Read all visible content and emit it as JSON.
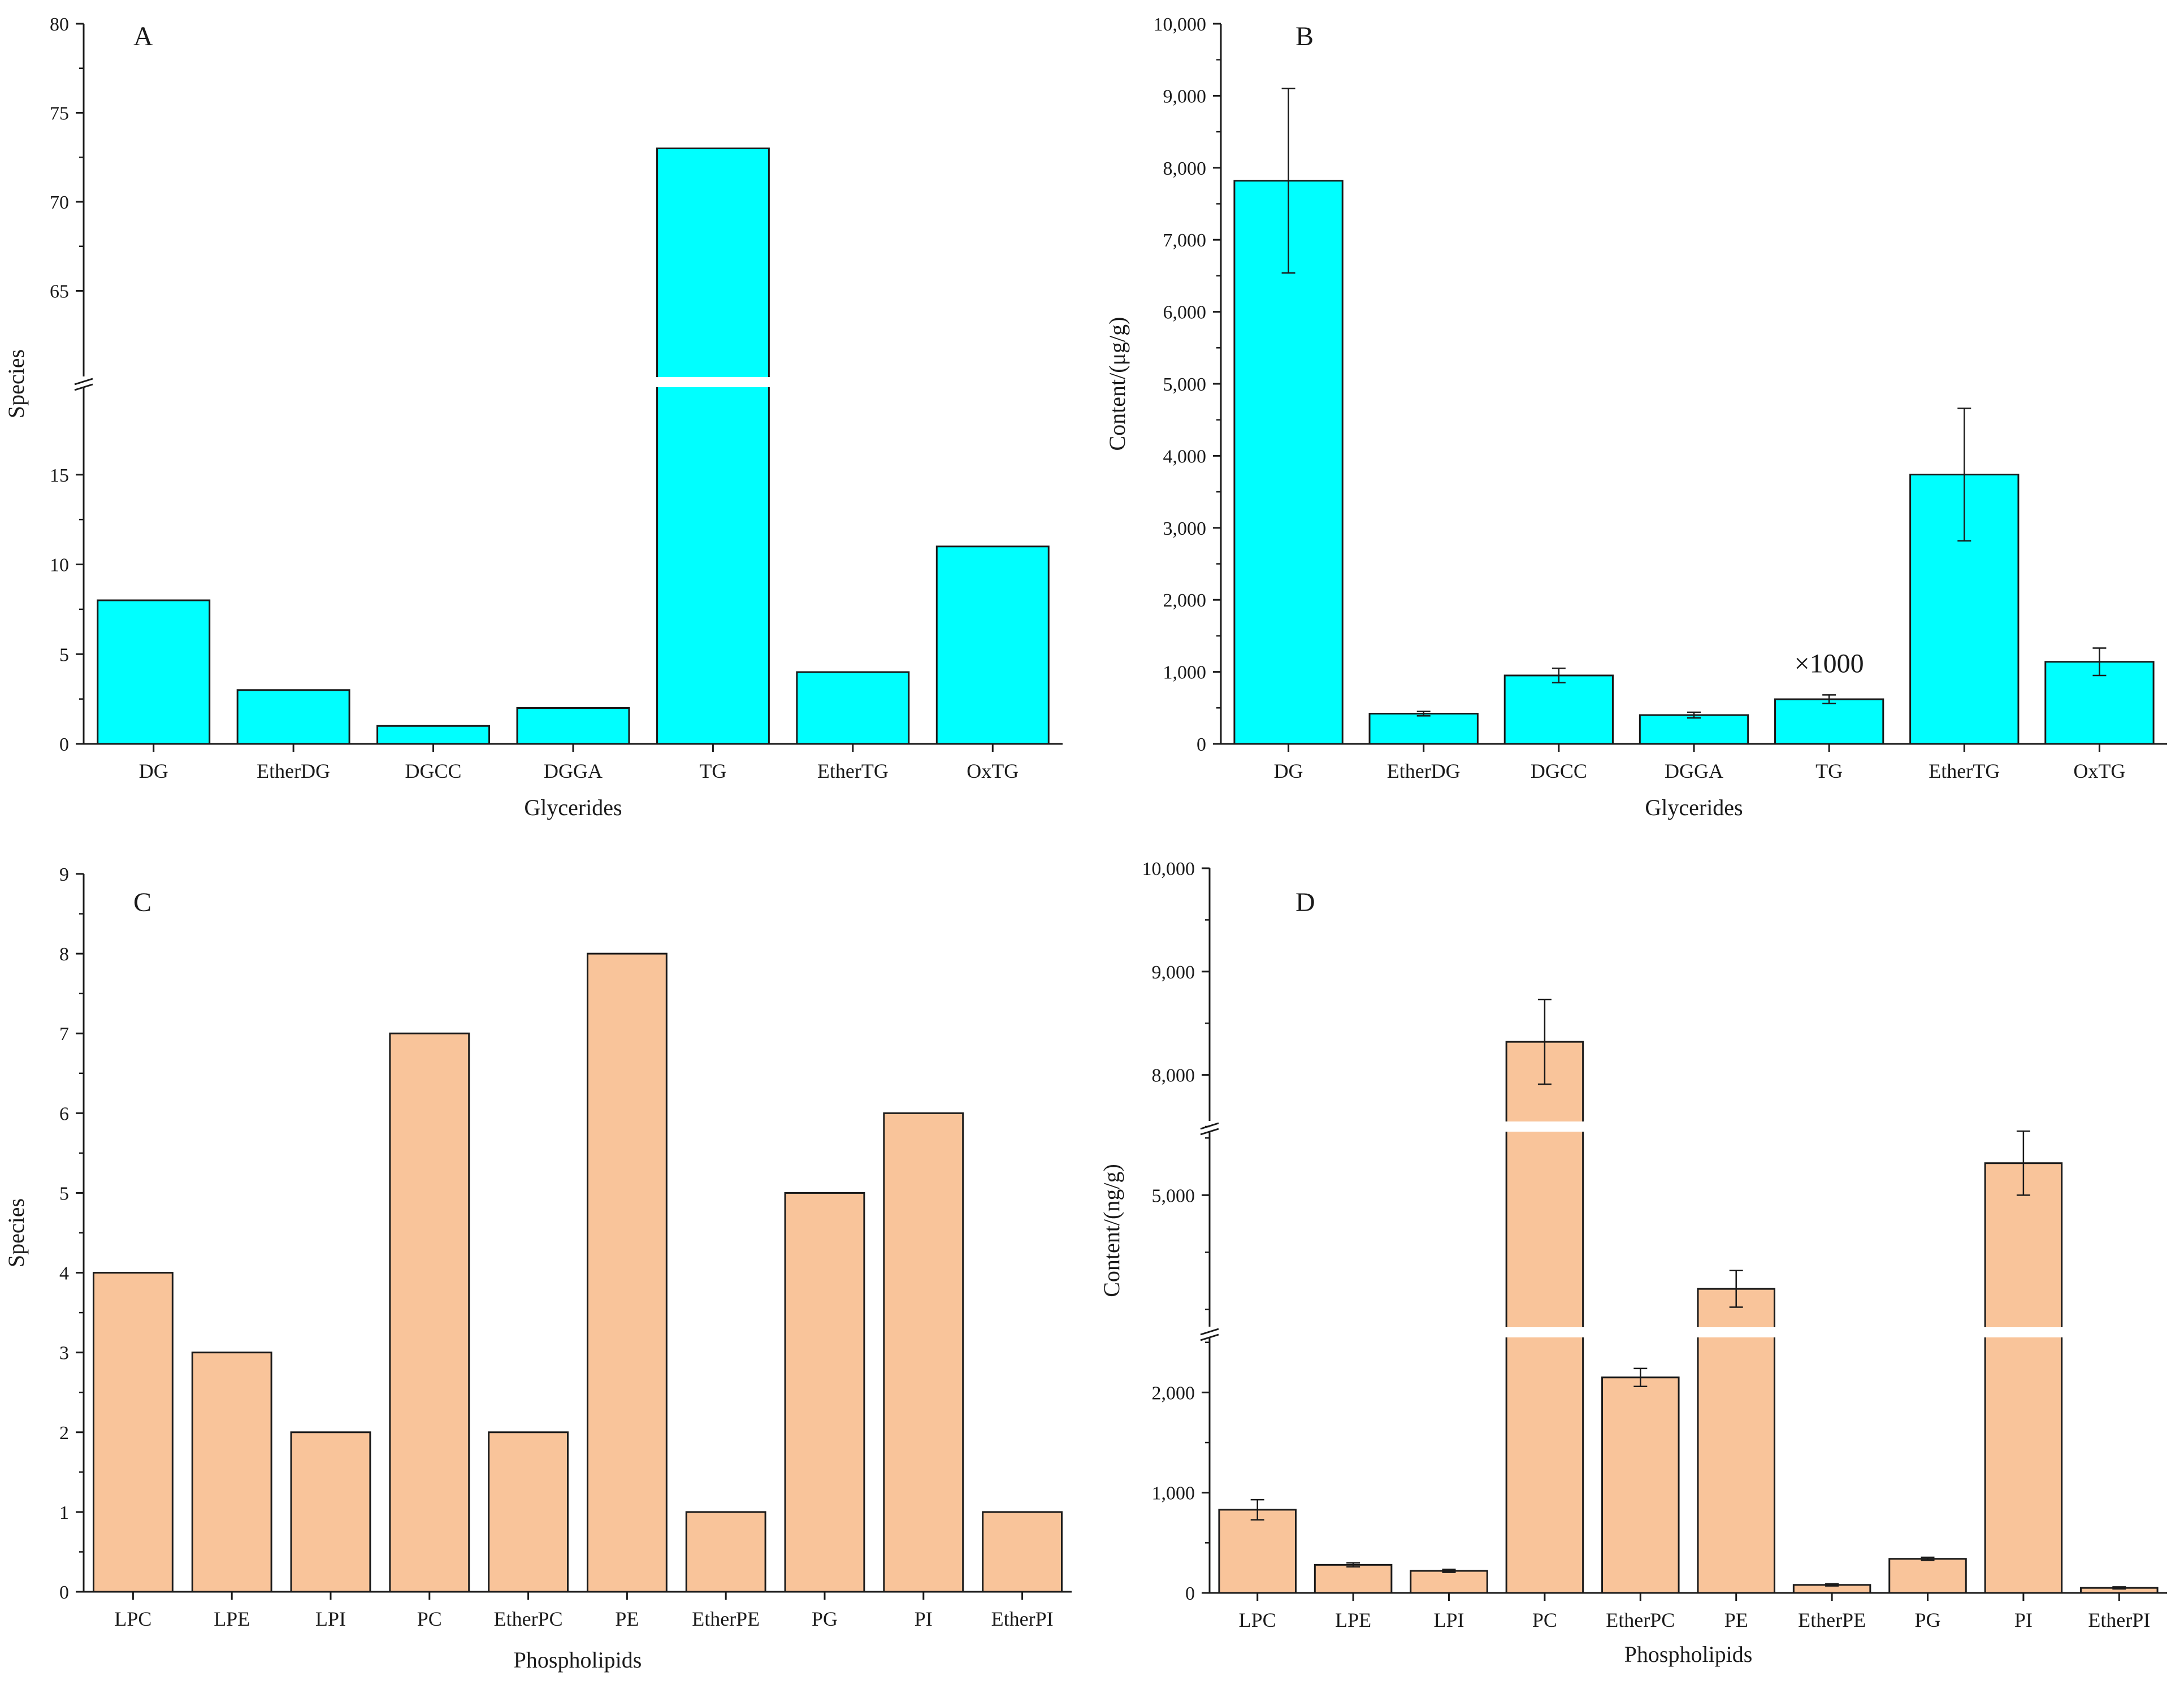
{
  "colors": {
    "cyan": "#00ffff",
    "peach": "#f9c49a",
    "stroke": "#1a1a1a"
  },
  "chart_data": [
    {
      "id": "A",
      "type": "bar",
      "panel_label": "A",
      "xlabel": "Glycerides",
      "ylabel": "Species",
      "categories": [
        "DG",
        "EtherDG",
        "DGCC",
        "DGGA",
        "TG",
        "EtherTG",
        "OxTG"
      ],
      "values": [
        8,
        3,
        1,
        2,
        73,
        4,
        11
      ],
      "axis_break": {
        "lower_range": [
          0,
          20
        ],
        "upper_range": [
          60,
          80
        ]
      },
      "y_ticks": [
        {
          "v": 0,
          "label": "0"
        },
        {
          "v": 5,
          "label": "5"
        },
        {
          "v": 10,
          "label": "10"
        },
        {
          "v": 15,
          "label": "15"
        },
        {
          "v": 65,
          "label": "65"
        },
        {
          "v": 70,
          "label": "70"
        },
        {
          "v": 75,
          "label": "75"
        },
        {
          "v": 80,
          "label": "80"
        }
      ],
      "color": "#00ffff"
    },
    {
      "id": "B",
      "type": "bar",
      "panel_label": "B",
      "xlabel": "Glycerides",
      "ylabel": "Content/(μg/g)",
      "categories": [
        "DG",
        "EtherDG",
        "DGCC",
        "DGGA",
        "TG",
        "EtherTG",
        "OxTG"
      ],
      "values": [
        7820,
        420,
        950,
        400,
        620,
        3740,
        1140
      ],
      "errors": [
        1280,
        30,
        100,
        40,
        60,
        920,
        190
      ],
      "ylim": [
        0,
        10000
      ],
      "y_ticks": [
        {
          "v": 0,
          "label": "0"
        },
        {
          "v": 1000,
          "label": "1,000"
        },
        {
          "v": 2000,
          "label": "2,000"
        },
        {
          "v": 3000,
          "label": "3,000"
        },
        {
          "v": 4000,
          "label": "4,000"
        },
        {
          "v": 5000,
          "label": "5,000"
        },
        {
          "v": 6000,
          "label": "6,000"
        },
        {
          "v": 7000,
          "label": "7,000"
        },
        {
          "v": 8000,
          "label": "8,000"
        },
        {
          "v": 9000,
          "label": "9,000"
        },
        {
          "v": 10000,
          "label": "10,000"
        }
      ],
      "annotations": [
        {
          "category": "TG",
          "text": "×1000"
        }
      ],
      "color": "#00ffff"
    },
    {
      "id": "C",
      "type": "bar",
      "panel_label": "C",
      "xlabel": "Phospholipids",
      "ylabel": "Species",
      "categories": [
        "LPC",
        "LPE",
        "LPI",
        "PC",
        "EtherPC",
        "PE",
        "EtherPE",
        "PG",
        "PI",
        "EtherPI"
      ],
      "values": [
        4,
        3,
        2,
        7,
        2,
        8,
        1,
        5,
        6,
        1
      ],
      "ylim": [
        0,
        9
      ],
      "y_ticks": [
        {
          "v": 0,
          "label": "0"
        },
        {
          "v": 1,
          "label": "1"
        },
        {
          "v": 2,
          "label": "2"
        },
        {
          "v": 3,
          "label": "3"
        },
        {
          "v": 4,
          "label": "4"
        },
        {
          "v": 5,
          "label": "5"
        },
        {
          "v": 6,
          "label": "6"
        },
        {
          "v": 7,
          "label": "7"
        },
        {
          "v": 8,
          "label": "8"
        },
        {
          "v": 9,
          "label": "9"
        }
      ],
      "color": "#f9c49a"
    },
    {
      "id": "D",
      "type": "bar",
      "panel_label": "D",
      "xlabel": "Phospholipids",
      "ylabel": "Content/(ng/g)",
      "categories": [
        "LPC",
        "LPE",
        "LPI",
        "PC",
        "EtherPC",
        "PE",
        "EtherPE",
        "PG",
        "PI",
        "EtherPI"
      ],
      "values": [
        830,
        280,
        220,
        8320,
        2150,
        4180,
        80,
        340,
        5280,
        50
      ],
      "errors": [
        100,
        20,
        15,
        410,
        90,
        160,
        10,
        15,
        280,
        10
      ],
      "axis_breaks": [
        [
          2600,
          3800
        ],
        [
          5600,
          7500
        ]
      ],
      "ylim": [
        0,
        10000
      ],
      "y_ticks": [
        {
          "v": 0,
          "label": "0"
        },
        {
          "v": 1000,
          "label": "1,000"
        },
        {
          "v": 2000,
          "label": "2,000"
        },
        {
          "v": 5000,
          "label": "5,000"
        },
        {
          "v": 8000,
          "label": "8,000"
        },
        {
          "v": 9000,
          "label": "9,000"
        },
        {
          "v": 10000,
          "label": "10,000"
        }
      ],
      "color": "#f9c49a"
    }
  ]
}
